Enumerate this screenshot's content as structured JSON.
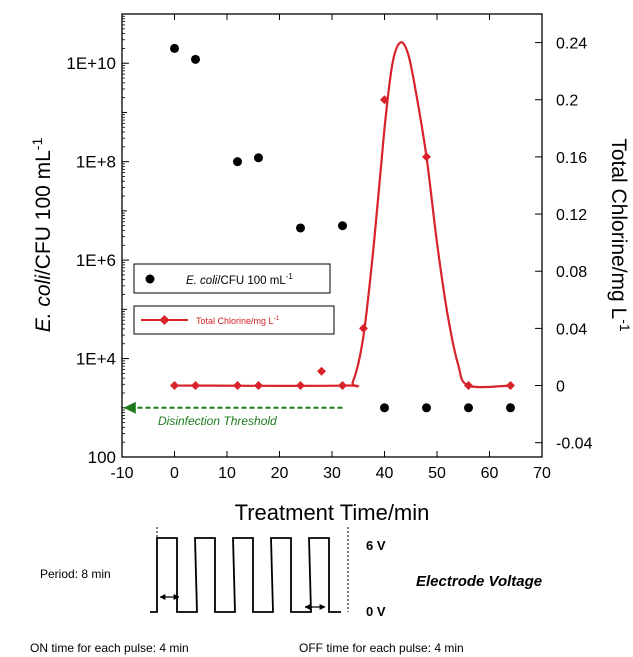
{
  "chart_data": {
    "type": "scatter",
    "xlabel": "Treatment Time/min",
    "ylabel_left_italic": "E. coli",
    "ylabel_left_rest": "/CFU 100 mL",
    "ylabel_left_sup": "-1",
    "ylabel_right": "Total Chlorine/mg L",
    "ylabel_right_sup": "-1",
    "xlim": [
      -10,
      70
    ],
    "y_left_scale": "log",
    "y_left_lim": [
      100,
      100000000000.0
    ],
    "y_right_lim": [
      -0.05,
      0.26
    ],
    "x_ticks": [
      -10,
      0,
      10,
      20,
      30,
      40,
      50,
      60,
      70
    ],
    "y_left_ticks": [
      {
        "value": 100,
        "label": "100"
      },
      {
        "value": 10000,
        "label": "1E+4"
      },
      {
        "value": 1000000,
        "label": "1E+6"
      },
      {
        "value": 100000000,
        "label": "1E+8"
      },
      {
        "value": 10000000000,
        "label": "1E+10"
      }
    ],
    "y_right_ticks": [
      {
        "value": -0.04,
        "label": "-0.04"
      },
      {
        "value": 0,
        "label": "0"
      },
      {
        "value": 0.04,
        "label": "0.04"
      },
      {
        "value": 0.08,
        "label": "0.08"
      },
      {
        "value": 0.12,
        "label": "0.12"
      },
      {
        "value": 0.16,
        "label": "0.16"
      },
      {
        "value": 0.2,
        "label": "0.2"
      },
      {
        "value": 0.24,
        "label": "0.24"
      }
    ],
    "legend_placement": "left-middle",
    "series": [
      {
        "name_italic": "E. coli",
        "name_rest": "/CFU 100 mL",
        "name_sup": "-1",
        "axis": "left",
        "color": "#000000",
        "marker": "circle",
        "points": [
          {
            "x": 0,
            "y": 20000000000
          },
          {
            "x": 4,
            "y": 12000000000
          },
          {
            "x": 12,
            "y": 100000000
          },
          {
            "x": 16,
            "y": 120000000
          },
          {
            "x": 24,
            "y": 4500000
          },
          {
            "x": 32,
            "y": 5000000
          },
          {
            "x": 40,
            "y": 1000
          },
          {
            "x": 48,
            "y": 1000
          },
          {
            "x": 56,
            "y": 1000
          },
          {
            "x": 64,
            "y": 1000
          }
        ]
      },
      {
        "name": "Total Chlorine/mg L",
        "name_sup": "-1",
        "axis": "right",
        "color": "#d8232a",
        "marker": "diamond",
        "points": [
          {
            "x": 0,
            "y": 0
          },
          {
            "x": 4,
            "y": 0
          },
          {
            "x": 12,
            "y": 0
          },
          {
            "x": 16,
            "y": 0
          },
          {
            "x": 24,
            "y": 0
          },
          {
            "x": 28,
            "y": 0.01
          },
          {
            "x": 32,
            "y": 0
          },
          {
            "x": 36,
            "y": 0.04
          },
          {
            "x": 40,
            "y": 0.2
          },
          {
            "x": 48,
            "y": 0.16
          },
          {
            "x": 56,
            "y": 0
          },
          {
            "x": 64,
            "y": 0
          }
        ],
        "fit_curve": [
          [
            0,
            0
          ],
          [
            32,
            0
          ],
          [
            34,
            0.003
          ],
          [
            36,
            0.035
          ],
          [
            38,
            0.1
          ],
          [
            40,
            0.18
          ],
          [
            41.5,
            0.225
          ],
          [
            43,
            0.24
          ],
          [
            44.5,
            0.232
          ],
          [
            46,
            0.205
          ],
          [
            48,
            0.16
          ],
          [
            50,
            0.1
          ],
          [
            52,
            0.05
          ],
          [
            54,
            0.015
          ],
          [
            56,
            0
          ],
          [
            64,
            0
          ]
        ]
      }
    ],
    "threshold": {
      "label": "Disinfection Threshold",
      "y": 1000,
      "x_start": 32,
      "color": "#1e7a1e"
    }
  },
  "voltage_panel": {
    "high_label": "6 V",
    "low_label": "0 V",
    "title": "Electrode Voltage",
    "period_label": "Period: 8 min",
    "on_label": "ON time for each pulse: 4 min",
    "off_label": "OFF time for each pulse: 4 min",
    "pulse_count": 5
  }
}
